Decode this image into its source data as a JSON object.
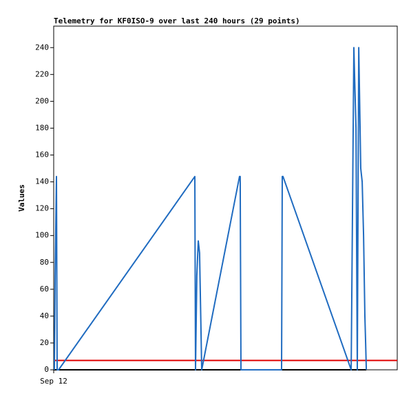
{
  "chart_data": {
    "type": "line",
    "title": "Telemetry for KF0ISO-9 over last 240 hours (29 points)",
    "y_label": "Values",
    "x": [
      0.5,
      1.0,
      1.9,
      2.4,
      3.4,
      98.6,
      99.1,
      100.0,
      101.0,
      101.9,
      103.4,
      129.8,
      130.3,
      130.8,
      159.2,
      159.7,
      160.2,
      207.8,
      209.7,
      210.2,
      211.2,
      212.1,
      213.1,
      214.5,
      215.5,
      216.5,
      217.4,
      217.9,
      218.4
    ],
    "values": [
      0,
      70,
      144,
      0,
      0,
      144,
      0,
      70,
      96,
      87,
      0,
      144,
      144,
      0,
      0,
      144,
      144,
      0,
      240,
      220,
      180,
      0,
      240,
      150,
      140,
      100,
      40,
      20,
      0
    ],
    "color": "#1f6bc0",
    "reference_line": 7,
    "reference_color": "#e00000",
    "xlim": [
      0,
      240
    ],
    "xticks": [
      {
        "value": 0,
        "label": "Sep 12"
      }
    ],
    "ylim": [
      0,
      256
    ],
    "yticks": [
      0,
      20,
      40,
      60,
      80,
      100,
      120,
      140,
      160,
      180,
      200,
      220,
      240
    ]
  }
}
